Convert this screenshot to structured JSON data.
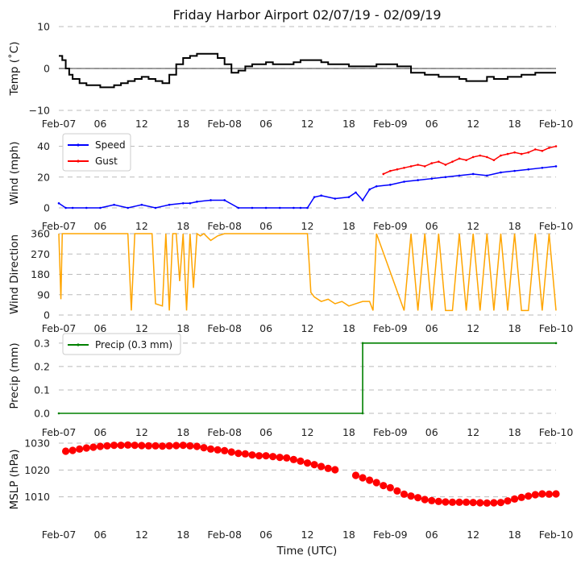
{
  "chart_data": [
    {
      "type": "line",
      "id": "temp",
      "title": "Friday Harbor Airport 02/07/19 - 02/09/19",
      "ylabel": "Temp (˚C)",
      "ylim": [
        -10,
        10
      ],
      "yticks": [
        "10",
        "0",
        "−10"
      ],
      "ytick_values": [
        10,
        0,
        -10
      ],
      "xlim_hours": [
        0,
        72
      ],
      "xticks": [
        "Feb-07",
        "06",
        "12",
        "18",
        "Feb-08",
        "06",
        "12",
        "18",
        "Feb-09",
        "06",
        "12",
        "18",
        "Feb-10"
      ],
      "zero_line": true,
      "color": "#000000",
      "series": [
        {
          "name": "Temp",
          "x_hours": [
            0,
            0.5,
            1,
            1.5,
            2,
            3,
            4,
            5,
            6,
            7,
            8,
            9,
            10,
            11,
            12,
            13,
            14,
            15,
            16,
            17,
            18,
            19,
            20,
            21,
            22,
            23,
            24,
            25,
            26,
            27,
            28,
            29,
            30,
            31,
            32,
            33,
            34,
            35,
            36,
            37,
            38,
            39,
            40,
            41,
            42,
            43,
            44,
            45,
            46,
            47,
            48,
            49,
            50,
            51,
            52,
            53,
            54,
            55,
            56,
            57,
            58,
            59,
            60,
            61,
            62,
            63,
            64,
            65,
            66,
            67,
            68,
            69,
            70,
            71,
            72
          ],
          "values": [
            3,
            2,
            0,
            -1.5,
            -2.5,
            -3.5,
            -4,
            -4,
            -4.5,
            -4.5,
            -4,
            -3.5,
            -3,
            -2.5,
            -2,
            -2.5,
            -3,
            -3.5,
            -1.5,
            1,
            2.5,
            3,
            3.5,
            3.5,
            3.5,
            2.5,
            1,
            -1,
            -0.5,
            0.5,
            1,
            1,
            1.5,
            1,
            1,
            1,
            1.5,
            2,
            2,
            2,
            1.5,
            1,
            1,
            1,
            0.5,
            0.5,
            0.5,
            0.5,
            1,
            1,
            1,
            0.5,
            0.5,
            -1,
            -1,
            -1.5,
            -1.5,
            -2,
            -2,
            -2,
            -2.5,
            -3,
            -3,
            -3,
            -2,
            -2.5,
            -2.5,
            -2,
            -2,
            -1.5,
            -1.5,
            -1,
            -1,
            -1,
            -1
          ]
        }
      ]
    },
    {
      "type": "line",
      "id": "wind",
      "ylabel": "Wind (mph)",
      "ylim": [
        0,
        45
      ],
      "yticks": [
        "40",
        "20",
        "0"
      ],
      "ytick_values": [
        40,
        20,
        0
      ],
      "xlim_hours": [
        0,
        72
      ],
      "xticks": [
        "Feb-07",
        "06",
        "12",
        "18",
        "Feb-08",
        "06",
        "12",
        "18",
        "Feb-09",
        "06",
        "12",
        "18",
        "Feb-10"
      ],
      "legend": [
        {
          "label": "Speed",
          "color": "#0000ff"
        },
        {
          "label": "Gust",
          "color": "#ff0000"
        }
      ],
      "series": [
        {
          "name": "Speed",
          "color": "#0000ff",
          "x_hours": [
            0,
            1,
            2,
            4,
            6,
            8,
            10,
            12,
            14,
            16,
            18,
            19,
            20,
            22,
            24,
            26,
            28,
            30,
            32,
            34,
            35,
            36,
            37,
            38,
            40,
            42,
            43,
            44,
            45,
            46,
            48,
            50,
            52,
            54,
            56,
            58,
            60,
            62,
            64,
            66,
            68,
            70,
            72
          ],
          "values": [
            3,
            0,
            0,
            0,
            0,
            2,
            0,
            2,
            0,
            2,
            3,
            3,
            4,
            5,
            5,
            0,
            0,
            0,
            0,
            0,
            0,
            0,
            7,
            8,
            6,
            7,
            10,
            5,
            12,
            14,
            15,
            17,
            18,
            19,
            20,
            21,
            22,
            21,
            23,
            24,
            25,
            26,
            27
          ]
        },
        {
          "name": "Gust",
          "color": "#ff0000",
          "x_hours": [
            47,
            48,
            49,
            50,
            51,
            52,
            53,
            54,
            55,
            56,
            57,
            58,
            59,
            60,
            61,
            62,
            63,
            64,
            65,
            66,
            67,
            68,
            69,
            70,
            71,
            72
          ],
          "values": [
            22,
            24,
            25,
            26,
            27,
            28,
            27,
            29,
            30,
            28,
            30,
            32,
            31,
            33,
            34,
            33,
            31,
            34,
            35,
            36,
            35,
            36,
            38,
            37,
            39,
            40
          ]
        }
      ]
    },
    {
      "type": "line",
      "id": "direction",
      "ylabel": "Wind Direction",
      "ylim": [
        0,
        360
      ],
      "yticks": [
        "360",
        "270",
        "180",
        "90",
        "0"
      ],
      "ytick_values": [
        360,
        270,
        180,
        90,
        0
      ],
      "xlim_hours": [
        0,
        72
      ],
      "xticks": [
        "Feb-07",
        "06",
        "12",
        "18",
        "Feb-08",
        "06",
        "12",
        "18",
        "Feb-09",
        "06",
        "12",
        "18",
        "Feb-10"
      ],
      "color": "#ffa500",
      "series": [
        {
          "name": "Direction",
          "x_hours": [
            0,
            0.3,
            0.5,
            6,
            10,
            10.5,
            11,
            13.5,
            14,
            15,
            15.5,
            16,
            16.5,
            17,
            17.5,
            18,
            18.5,
            19,
            19.5,
            20,
            20.5,
            21,
            22,
            23,
            24,
            25,
            27,
            29,
            31,
            33,
            35,
            36,
            36.5,
            37,
            38,
            39,
            40,
            41,
            42,
            43,
            44,
            45,
            45.5,
            46,
            50,
            51,
            52,
            53,
            54,
            55,
            56,
            57,
            58,
            59,
            60,
            61,
            62,
            63,
            64,
            65,
            66,
            67,
            68,
            69,
            70,
            71,
            72
          ],
          "values": [
            360,
            70,
            360,
            360,
            360,
            20,
            360,
            360,
            50,
            40,
            360,
            20,
            360,
            360,
            150,
            360,
            20,
            360,
            120,
            360,
            350,
            360,
            330,
            350,
            360,
            360,
            360,
            360,
            360,
            360,
            360,
            360,
            100,
            80,
            60,
            70,
            50,
            60,
            40,
            50,
            60,
            60,
            20,
            360,
            20,
            360,
            20,
            360,
            20,
            360,
            20,
            20,
            360,
            20,
            360,
            20,
            360,
            20,
            360,
            20,
            360,
            20,
            20,
            360,
            20,
            360,
            20
          ]
        }
      ]
    },
    {
      "type": "line",
      "id": "precip",
      "ylabel": "Precip (mm)",
      "ylim": [
        0,
        0.32
      ],
      "yticks": [
        "0.3",
        "0.2",
        "0.1",
        "0.0"
      ],
      "ytick_values": [
        0.3,
        0.2,
        0.1,
        0.0
      ],
      "xlim_hours": [
        0,
        72
      ],
      "xticks": [
        "Feb-07",
        "06",
        "12",
        "18",
        "Feb-08",
        "06",
        "12",
        "18",
        "Feb-09",
        "06",
        "12",
        "18",
        "Feb-10"
      ],
      "legend": [
        {
          "label": "Precip (0.3 mm)",
          "color": "#008000"
        }
      ],
      "series": [
        {
          "name": "Precip (0.3 mm)",
          "color": "#008000",
          "x_hours": [
            0,
            44,
            44,
            72
          ],
          "values": [
            0,
            0,
            0.3,
            0.3
          ]
        }
      ]
    },
    {
      "type": "scatter",
      "id": "mslp",
      "ylabel": "MSLP (hPa)",
      "xlabel": "Time (UTC)",
      "ylim": [
        1003,
        1030
      ],
      "yticks": [
        "1030",
        "1020",
        "1010"
      ],
      "ytick_values": [
        1030,
        1020,
        1010
      ],
      "xlim_hours": [
        0,
        72
      ],
      "xticks": [
        "Feb-07",
        "06",
        "12",
        "18",
        "Feb-08",
        "06",
        "12",
        "18",
        "Feb-09",
        "06",
        "12",
        "18",
        "Feb-10"
      ],
      "color": "#ff0000",
      "series": [
        {
          "name": "MSLP",
          "x_hours": [
            1,
            2,
            3,
            4,
            5,
            6,
            7,
            8,
            9,
            10,
            11,
            12,
            13,
            14,
            15,
            16,
            17,
            18,
            19,
            20,
            21,
            22,
            23,
            24,
            25,
            26,
            27,
            28,
            29,
            30,
            31,
            32,
            33,
            34,
            35,
            36,
            37,
            38,
            39,
            40,
            43,
            44,
            45,
            46,
            47,
            48,
            49,
            50,
            51,
            52,
            53,
            54,
            55,
            56,
            57,
            58,
            59,
            60,
            61,
            62,
            63,
            64,
            65,
            66,
            67,
            68,
            69,
            70,
            71,
            72
          ],
          "values": [
            1027.0,
            1027.3,
            1027.8,
            1028.2,
            1028.5,
            1028.8,
            1029.0,
            1029.2,
            1029.2,
            1029.3,
            1029.2,
            1029.1,
            1029.0,
            1029.0,
            1028.9,
            1029.0,
            1029.1,
            1029.2,
            1029.0,
            1028.8,
            1028.3,
            1027.8,
            1027.5,
            1027.2,
            1026.7,
            1026.2,
            1026.0,
            1025.6,
            1025.3,
            1025.3,
            1025.0,
            1024.7,
            1024.5,
            1023.9,
            1023.3,
            1022.6,
            1022.0,
            1021.3,
            1020.6,
            1020.1,
            1018.0,
            1017.1,
            1016.2,
            1015.3,
            1014.2,
            1013.4,
            1012.2,
            1011.0,
            1010.3,
            1009.7,
            1009.0,
            1008.6,
            1008.3,
            1008.1,
            1008.0,
            1008.0,
            1008.0,
            1007.9,
            1007.8,
            1007.7,
            1007.8,
            1007.9,
            1008.5,
            1009.2,
            1009.8,
            1010.3,
            1010.8,
            1011.1,
            1011.0,
            1011.1
          ]
        }
      ]
    }
  ]
}
